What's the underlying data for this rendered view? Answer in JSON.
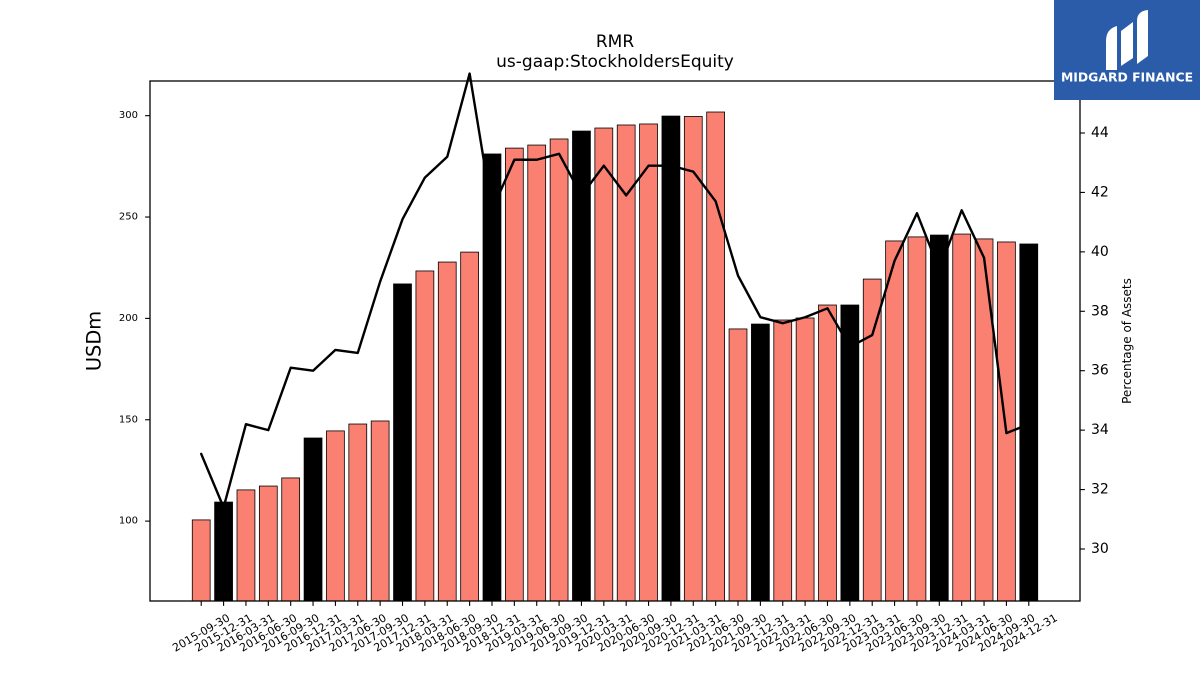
{
  "logo": {
    "text": "MIDGARD FINANCE",
    "background": "#2b5ca9",
    "icon": "midgard-logo-icon"
  },
  "chart_data": {
    "type": "bar",
    "title": "RMR",
    "subtitle": "us-gaap:StockholdersEquity",
    "ylabel": "USDm",
    "ylim": [
      60.6,
      317.1
    ],
    "yticks": [
      100,
      150,
      200,
      250,
      300
    ],
    "grid": false,
    "show_legend": false,
    "bar_edge_color": "#000000",
    "categories": [
      "2015-09-30",
      "2015-12-31",
      "2016-03-31",
      "2016-06-30",
      "2016-09-30",
      "2016-12-31",
      "2017-03-31",
      "2017-06-30",
      "2017-09-30",
      "2017-12-31",
      "2018-03-31",
      "2018-06-30",
      "2018-09-30",
      "2018-12-31",
      "2019-03-31",
      "2019-06-30",
      "2019-09-30",
      "2019-12-31",
      "2020-03-31",
      "2020-06-30",
      "2020-09-30",
      "2020-12-31",
      "2021-03-31",
      "2021-06-30",
      "2021-09-30",
      "2021-12-31",
      "2022-03-31",
      "2022-06-30",
      "2022-09-30",
      "2022-12-31",
      "2023-03-31",
      "2023-06-30",
      "2023-09-30",
      "2023-12-31",
      "2024-03-31",
      "2024-06-30",
      "2024-09-30",
      "2024-12-31"
    ],
    "values": [
      100.6,
      109.4,
      115.4,
      117.3,
      121.3,
      141.0,
      144.5,
      147.9,
      149.4,
      217.0,
      223.4,
      227.8,
      232.7,
      281.1,
      284.0,
      285.5,
      288.5,
      292.4,
      293.9,
      295.4,
      295.9,
      299.8,
      299.6,
      301.8,
      194.8,
      197.2,
      199.2,
      200.2,
      206.6,
      206.6,
      219.4,
      238.2,
      240.2,
      241.1,
      241.6,
      239.2,
      237.7,
      236.7
    ],
    "bar_colors": [
      "#fa8072",
      "#000000",
      "#fa8072",
      "#fa8072",
      "#fa8072",
      "#000000",
      "#fa8072",
      "#fa8072",
      "#fa8072",
      "#000000",
      "#fa8072",
      "#fa8072",
      "#fa8072",
      "#000000",
      "#fa8072",
      "#fa8072",
      "#fa8072",
      "#000000",
      "#fa8072",
      "#fa8072",
      "#fa8072",
      "#000000",
      "#fa8072",
      "#fa8072",
      "#fa8072",
      "#000000",
      "#fa8072",
      "#fa8072",
      "#fa8072",
      "#000000",
      "#fa8072",
      "#fa8072",
      "#fa8072",
      "#000000",
      "#fa8072",
      "#fa8072",
      "#fa8072",
      "#000000"
    ],
    "secondary": {
      "type": "line",
      "ylabel": "Percentage of Assets",
      "ylim": [
        28.25,
        45.75
      ],
      "yticks": [
        30,
        32,
        34,
        36,
        38,
        40,
        42,
        44
      ],
      "color": "#000000",
      "values": [
        33.2,
        31.4,
        34.2,
        34.0,
        36.1,
        36.0,
        36.7,
        36.6,
        39.0,
        41.1,
        42.5,
        43.2,
        46.0,
        41.4,
        43.1,
        43.1,
        43.3,
        41.9,
        42.9,
        41.9,
        42.9,
        42.9,
        42.7,
        41.7,
        39.2,
        37.8,
        37.6,
        37.8,
        38.1,
        36.8,
        37.2,
        39.7,
        41.3,
        39.4,
        41.4,
        39.8,
        33.9,
        34.2
      ]
    }
  }
}
